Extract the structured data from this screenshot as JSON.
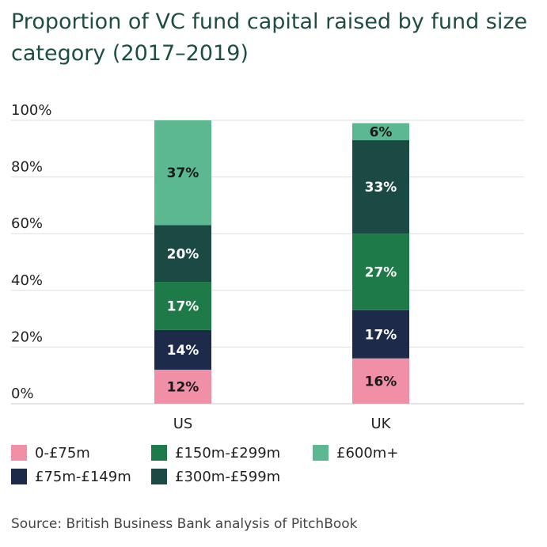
{
  "title": "Proportion of VC fund capital raised by fund size category (2017–2019)",
  "source": "Source: British Business Bank analysis of PitchBook",
  "chart_data": {
    "type": "bar",
    "stacked": true,
    "categories": [
      "US",
      "UK"
    ],
    "ylim": [
      0,
      100
    ],
    "yticks": [
      "0%",
      "20%",
      "40%",
      "60%",
      "80%",
      "100%"
    ],
    "series": [
      {
        "name": "0-£75m",
        "values": [
          12,
          16
        ],
        "labels": [
          "12%",
          "16%"
        ],
        "color": "#f08fa6",
        "label_color": "#1a1a1a"
      },
      {
        "name": "£75m-£149m",
        "values": [
          14,
          17
        ],
        "labels": [
          "14%",
          "17%"
        ],
        "color": "#1d2a4a",
        "label_color": "#ffffff"
      },
      {
        "name": "£150m-£299m",
        "values": [
          17,
          27
        ],
        "labels": [
          "17%",
          "27%"
        ],
        "color": "#1e7a48",
        "label_color": "#ffffff"
      },
      {
        "name": "£300m-£599m",
        "values": [
          20,
          33
        ],
        "labels": [
          "20%",
          "33%"
        ],
        "color": "#1b4a45",
        "label_color": "#ffffff"
      },
      {
        "name": "£600m+",
        "values": [
          37,
          6
        ],
        "labels": [
          "37%",
          "6%"
        ],
        "color": "#5bb891",
        "label_color": "#1a1a1a"
      }
    ],
    "legend": "bottom"
  }
}
